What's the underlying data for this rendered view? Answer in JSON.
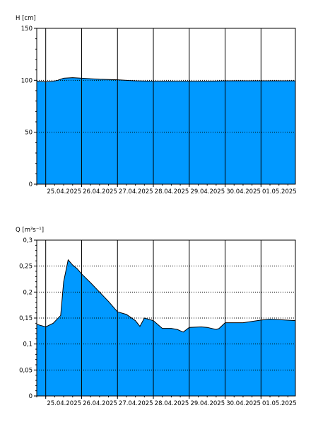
{
  "chart_data": [
    {
      "type": "area",
      "ylabel": "H [cm]",
      "ylim": [
        0,
        150
      ],
      "yticks": [
        0,
        50,
        100,
        150
      ],
      "ytick_labels": [
        "0",
        "50",
        "100",
        "150"
      ],
      "y_dotted_gridlines": [
        50,
        100
      ],
      "xlim": [
        "2025-04-24T18:00",
        "2025-05-01T23:00"
      ],
      "xticks": [
        "2025-04-25T00:00",
        "2025-04-26T00:00",
        "2025-04-27T00:00",
        "2025-04-28T00:00",
        "2025-04-29T00:00",
        "2025-04-30T00:00",
        "2025-05-01T00:00"
      ],
      "xtick_labels": [
        "25.04.2025",
        "26.04.2025",
        "27.04.2025",
        "28.04.2025",
        "29.04.2025",
        "30.04.2025",
        "01.05.2025"
      ],
      "fill_color": "#0099ff",
      "line_color": "#000000",
      "series": [
        {
          "x": [
            "2025-04-24T18:00",
            "2025-04-25T00:00",
            "2025-04-25T05:00",
            "2025-04-25T08:00",
            "2025-04-25T12:00",
            "2025-04-25T18:00",
            "2025-04-26T00:00",
            "2025-04-26T12:00",
            "2025-04-27T00:00",
            "2025-04-27T12:00",
            "2025-04-28T00:00",
            "2025-04-28T12:00",
            "2025-04-29T00:00",
            "2025-04-29T12:00",
            "2025-04-30T00:00",
            "2025-04-30T12:00",
            "2025-05-01T00:00",
            "2025-05-01T12:00",
            "2025-05-01T23:00"
          ],
          "values": [
            99,
            98.5,
            99,
            100,
            102,
            102.5,
            102,
            101,
            100.5,
            99.5,
            99,
            99,
            99,
            99,
            99.5,
            99.5,
            99.5,
            99.5,
            99.5
          ]
        }
      ]
    },
    {
      "type": "area",
      "ylabel": "Q [m³s⁻¹]",
      "ylim": [
        0,
        0.3
      ],
      "yticks": [
        0,
        0.05,
        0.1,
        0.15,
        0.2,
        0.25,
        0.3
      ],
      "ytick_labels": [
        "0",
        "0,05",
        "0,1",
        "0,15",
        "0,2",
        "0,25",
        "0,3"
      ],
      "y_dotted_gridlines": [
        0.05,
        0.1,
        0.15,
        0.2,
        0.25
      ],
      "xlim": [
        "2025-04-24T18:00",
        "2025-05-01T23:00"
      ],
      "xticks": [
        "2025-04-25T00:00",
        "2025-04-26T00:00",
        "2025-04-27T00:00",
        "2025-04-28T00:00",
        "2025-04-29T00:00",
        "2025-04-30T00:00",
        "2025-05-01T00:00"
      ],
      "xtick_labels": [
        "25.04.2025",
        "26.04.2025",
        "27.04.2025",
        "28.04.2025",
        "29.04.2025",
        "30.04.2025",
        "01.05.2025"
      ],
      "fill_color": "#0099ff",
      "line_color": "#000000",
      "series": [
        {
          "x": [
            "2025-04-24T18:00",
            "2025-04-25T00:00",
            "2025-04-25T05:00",
            "2025-04-25T10:00",
            "2025-04-25T12:00",
            "2025-04-25T15:00",
            "2025-04-25T18:00",
            "2025-04-25T21:00",
            "2025-04-26T00:00",
            "2025-04-26T06:00",
            "2025-04-26T12:00",
            "2025-04-26T18:00",
            "2025-04-27T00:00",
            "2025-04-27T06:00",
            "2025-04-27T12:00",
            "2025-04-27T15:00",
            "2025-04-27T18:00",
            "2025-04-28T00:00",
            "2025-04-28T06:00",
            "2025-04-28T12:00",
            "2025-04-28T16:00",
            "2025-04-28T20:00",
            "2025-04-29T00:00",
            "2025-04-29T08:00",
            "2025-04-29T12:00",
            "2025-04-29T18:00",
            "2025-04-29T20:00",
            "2025-04-30T00:00",
            "2025-04-30T12:00",
            "2025-05-01T00:00",
            "2025-05-01T06:00",
            "2025-05-01T12:00",
            "2025-05-01T23:00"
          ],
          "values": [
            0.138,
            0.133,
            0.14,
            0.155,
            0.22,
            0.262,
            0.252,
            0.245,
            0.235,
            0.218,
            0.2,
            0.182,
            0.162,
            0.157,
            0.145,
            0.134,
            0.15,
            0.145,
            0.13,
            0.13,
            0.128,
            0.123,
            0.132,
            0.133,
            0.132,
            0.128,
            0.13,
            0.141,
            0.141,
            0.146,
            0.148,
            0.147,
            0.145
          ]
        }
      ]
    }
  ]
}
